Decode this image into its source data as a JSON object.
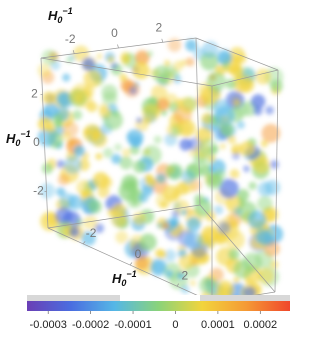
{
  "chart_data": {
    "type": "volume3d",
    "axes": {
      "top": {
        "label": {
          "base": "H",
          "sub": "0",
          "sup": "−1"
        },
        "lim": [
          -3.5,
          3.5
        ],
        "ticks": [
          -2,
          0,
          2
        ]
      },
      "left": {
        "label": {
          "base": "H",
          "sub": "0",
          "sup": "−1"
        },
        "lim": [
          -3.5,
          3.5
        ],
        "ticks": [
          2,
          0,
          -2
        ]
      },
      "bottom": {
        "label": {
          "base": "H",
          "sub": "0",
          "sup": "−1"
        },
        "lim": [
          -3.5,
          3.5
        ],
        "ticks": [
          -2,
          0,
          2
        ]
      }
    },
    "colorbar": {
      "lim": [
        -0.00035,
        0.00027
      ],
      "ticks": [
        -0.0003,
        -0.0002,
        -0.0001,
        0,
        0.0001,
        0.0002
      ],
      "colors": [
        "#6a3fb5",
        "#4a6de0",
        "#55b7e6",
        "#8ad37a",
        "#f2d43c",
        "#f59a35",
        "#f0472b"
      ]
    }
  }
}
